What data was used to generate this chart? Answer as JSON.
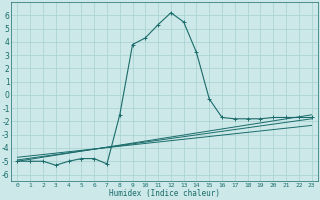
{
  "xlabel": "Humidex (Indice chaleur)",
  "bg_color": "#cce8e8",
  "grid_color": "#a8d0d0",
  "line_color": "#1a6b6b",
  "xlim": [
    -0.5,
    23.5
  ],
  "ylim": [
    -6.5,
    7.0
  ],
  "yticks": [
    -6,
    -5,
    -4,
    -3,
    -2,
    -1,
    0,
    1,
    2,
    3,
    4,
    5,
    6
  ],
  "xticks": [
    0,
    1,
    2,
    3,
    4,
    5,
    6,
    7,
    8,
    9,
    10,
    11,
    12,
    13,
    14,
    15,
    16,
    17,
    18,
    19,
    20,
    21,
    22,
    23
  ],
  "series": [
    {
      "x": [
        0,
        1,
        2,
        3,
        4,
        5,
        6,
        7,
        8,
        9,
        10,
        11,
        12,
        13,
        14,
        15,
        16,
        17,
        18,
        19,
        20,
        21,
        22,
        23
      ],
      "y": [
        -5.0,
        -5.0,
        -5.0,
        -5.3,
        -5.0,
        -4.8,
        -4.8,
        -5.2,
        -1.5,
        3.8,
        4.3,
        5.3,
        6.2,
        5.5,
        3.2,
        -0.3,
        -1.7,
        -1.8,
        -1.8,
        -1.8,
        -1.7,
        -1.7,
        -1.7,
        -1.7
      ],
      "marker": true
    },
    {
      "x": [
        0,
        23
      ],
      "y": [
        -5.0,
        -1.5
      ],
      "marker": false
    },
    {
      "x": [
        0,
        23
      ],
      "y": [
        -4.7,
        -2.3
      ],
      "marker": false
    },
    {
      "x": [
        0,
        23
      ],
      "y": [
        -4.9,
        -1.8
      ],
      "marker": false
    }
  ]
}
